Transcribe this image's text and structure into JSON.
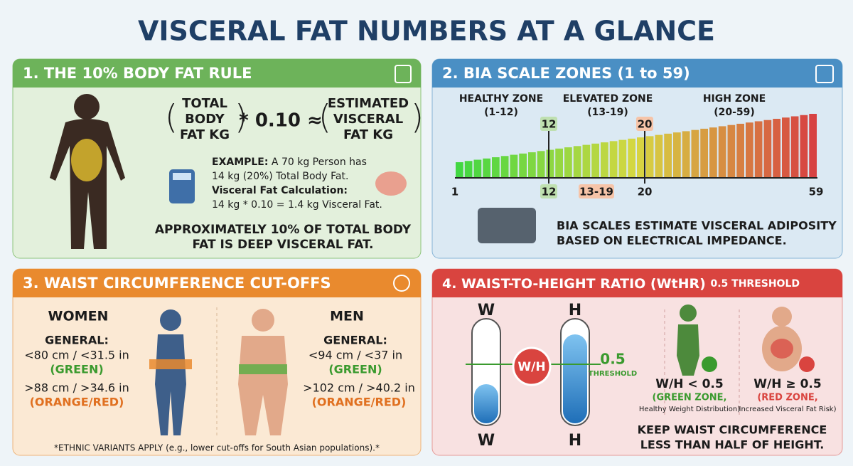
{
  "title": "VISCERAL FAT NUMBERS AT A GLANCE",
  "rule": {
    "heading": "1. THE 10% BODY FAT RULE",
    "formula_left": [
      "TOTAL",
      "BODY",
      "FAT KG"
    ],
    "formula_operator": "* 0.10 ≈",
    "formula_right": [
      "ESTIMATED",
      "VISCERAL",
      "FAT KG"
    ],
    "example_label": "EXAMPLE:",
    "example_lines": [
      "A 70 kg Person has",
      "14 kg (20%) Total Body Fat.",
      "Visceral Fat Calculation:",
      "14 kg * 0.10 = 1.4 kg Visceral Fat."
    ],
    "note": [
      "APPROXIMATELY 10% OF TOTAL BODY",
      "FAT IS DEEP VISCERAL FAT."
    ]
  },
  "bia": {
    "heading": "2. BIA SCALE ZONES (1 to 59)",
    "zones": [
      {
        "name": "HEALTHY ZONE",
        "range": "(1-12)"
      },
      {
        "name": "ELEVATED ZONE",
        "range": "(13-19)"
      },
      {
        "name": "HIGH ZONE",
        "range": "(20-59)"
      }
    ],
    "top_markers": [
      "12",
      "20"
    ],
    "scale_labels": [
      "1",
      "12",
      "13-19",
      "20",
      "59"
    ],
    "caption": [
      "BIA SCALES ESTIMATE VISCERAL ADIPOSITY",
      "BASED ON ELECTRICAL IMPEDANCE."
    ]
  },
  "waist": {
    "heading": "3. WAIST CIRCUMFERENCE CUT-OFFS",
    "women": {
      "label": "WOMEN",
      "general": "GENERAL:",
      "low": "<80 cm / <31.5 in",
      "low_zone": "(GREEN)",
      "high": ">88 cm / >34.6 in",
      "high_zone": "(ORANGE/RED)"
    },
    "men": {
      "label": "MEN",
      "general": "GENERAL:",
      "low": "<94 cm / <37 in",
      "low_zone": "(GREEN)",
      "high": ">102 cm / >40.2 in",
      "high_zone": "(ORANGE/RED)"
    },
    "footnote": "*ETHNIC VARIANTS APPLY (e.g., lower cut-offs for South Asian populations).*"
  },
  "wthr": {
    "heading": "4. WAIST-TO-HEIGHT RATIO (WtHR)",
    "heading_small": "0.5 THRESHOLD",
    "tube_top": [
      "W",
      "H"
    ],
    "tube_bottom": [
      "W",
      "H"
    ],
    "badge": "W/H",
    "threshold_value": "0.5",
    "threshold_label": "THRESHOLD",
    "good": [
      "W/H < 0.5",
      "(GREEN ZONE,",
      "Healthy Weight Distribution)"
    ],
    "bad": [
      "W/H ≥ 0.5",
      "(RED ZONE,",
      "Increased Visceral Fat Risk)"
    ],
    "caption": [
      "KEEP WAIST CIRCUMFERENCE",
      "LESS THAN HALF OF HEIGHT."
    ]
  }
}
